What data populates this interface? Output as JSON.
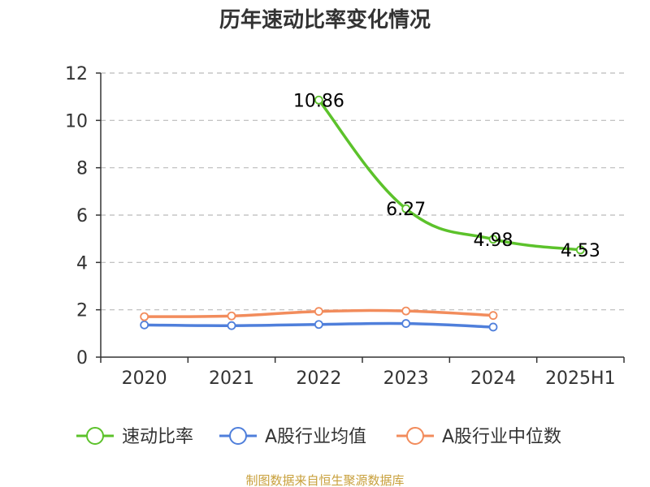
{
  "chart_data": {
    "type": "line",
    "title": "历年速动比率变化情况",
    "categories": [
      "2020",
      "2021",
      "2022",
      "2023",
      "2024",
      "2025H1"
    ],
    "ylim": [
      0,
      12
    ],
    "yticks": [
      0,
      2,
      4,
      6,
      8,
      10,
      12
    ],
    "grid": true,
    "legend_position": "bottom",
    "series": [
      {
        "name": "速动比率",
        "color": "#5cc22b",
        "values": [
          null,
          null,
          10.86,
          6.27,
          4.98,
          4.53
        ],
        "data_labels": [
          "",
          "",
          "10.86",
          "6.27",
          "4.98",
          "4.53"
        ]
      },
      {
        "name": "A股行业均值",
        "color": "#4f7fdb",
        "values": [
          1.36,
          1.33,
          1.38,
          1.42,
          1.27,
          null
        ]
      },
      {
        "name": "A股行业中位数",
        "color": "#f28c5c",
        "values": [
          1.71,
          1.74,
          1.93,
          1.95,
          1.76,
          null
        ]
      }
    ],
    "source": "制图数据来自恒生聚源数据库"
  }
}
